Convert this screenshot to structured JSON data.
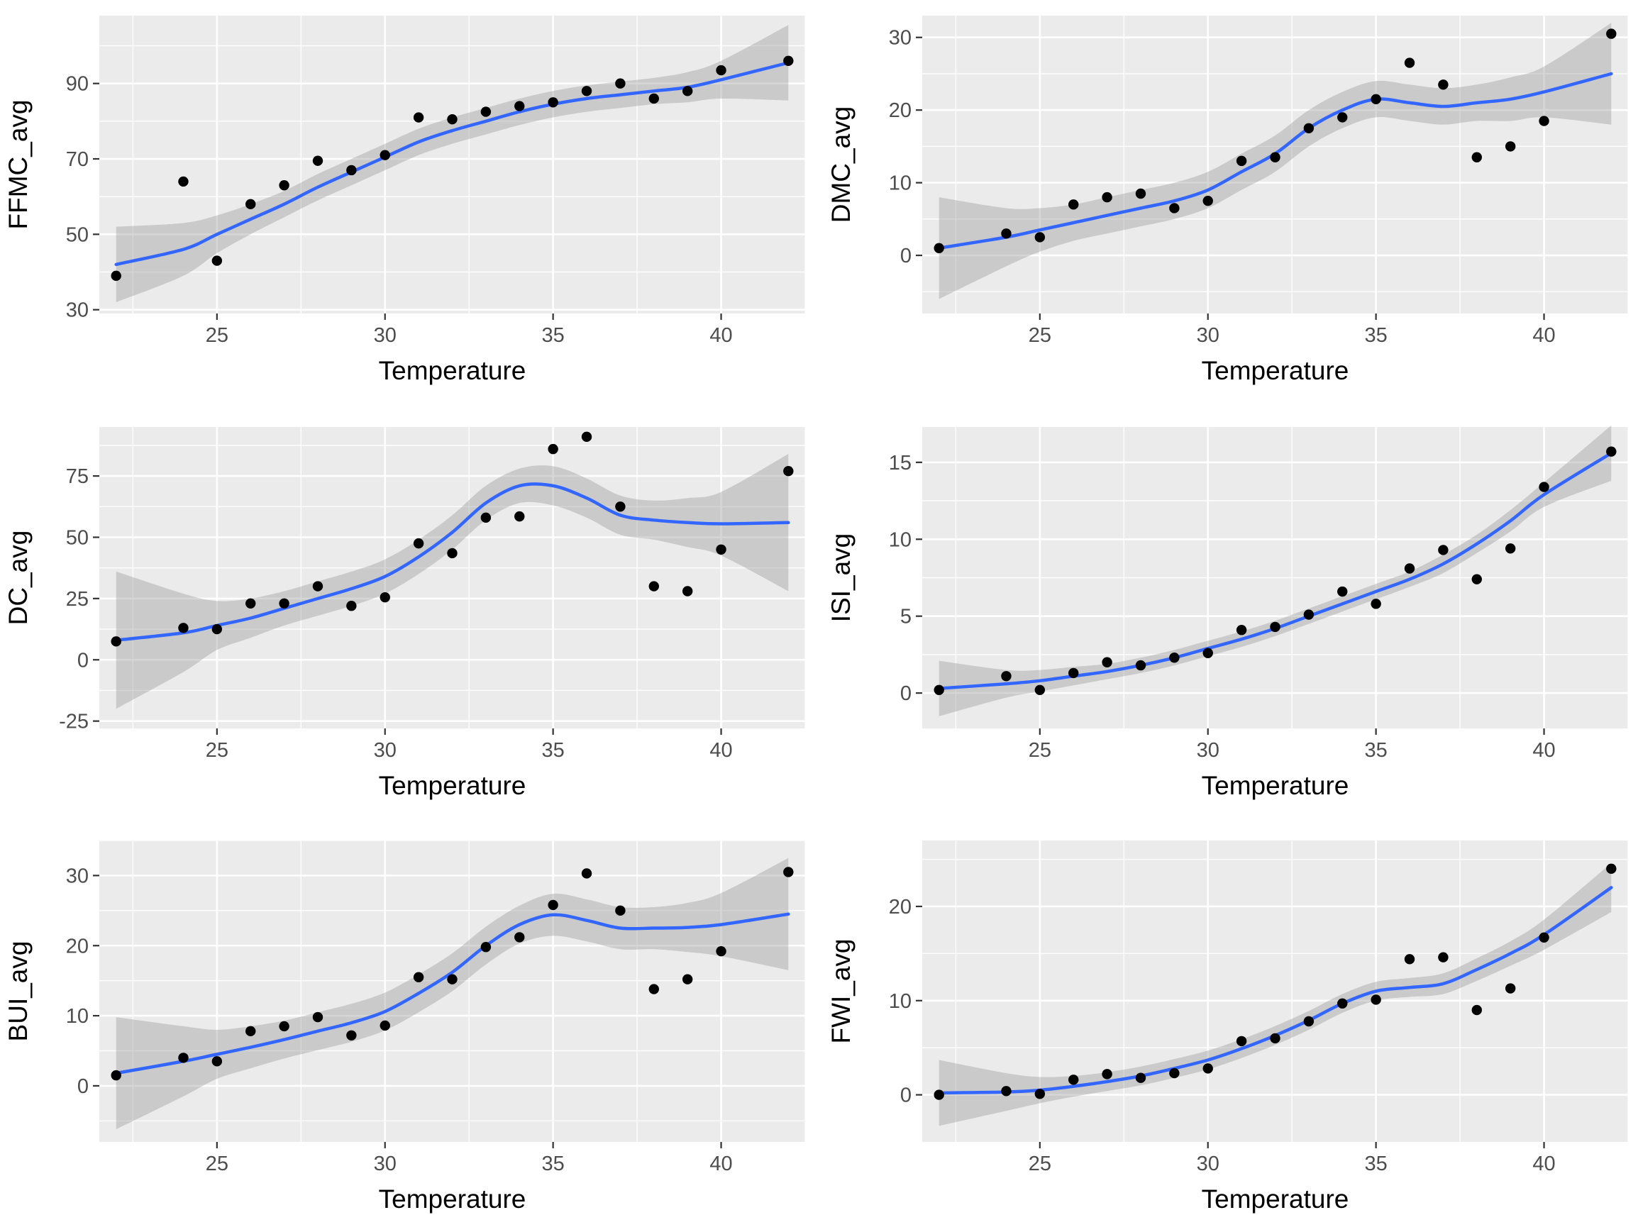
{
  "chart_data": [
    {
      "type": "scatter",
      "smooth": "loess with confidence band",
      "xlabel": "Temperature",
      "ylabel": "FFMC_avg",
      "xlim": [
        21.5,
        42.5
      ],
      "ylim": [
        29,
        108
      ],
      "xticks": [
        25,
        30,
        35,
        40
      ],
      "yticks": [
        30,
        50,
        70,
        90
      ],
      "x": [
        22,
        24,
        25,
        26,
        27,
        28,
        29,
        30,
        31,
        32,
        33,
        34,
        35,
        36,
        37,
        38,
        39,
        40,
        42
      ],
      "y": [
        39,
        64,
        43,
        58,
        63,
        69.5,
        67,
        71,
        81,
        80.5,
        82.5,
        84,
        85,
        88,
        90,
        86,
        88,
        93.5,
        96
      ],
      "fit": [
        42,
        46,
        50,
        54,
        58,
        62.5,
        66.5,
        70.5,
        74.5,
        77.5,
        80,
        82.5,
        84.5,
        86,
        87,
        88,
        89,
        91,
        95.5
      ],
      "band": [
        10,
        7,
        5,
        4,
        3.5,
        3.5,
        3.5,
        3.5,
        3.5,
        3.5,
        3.5,
        3.5,
        3.5,
        3.5,
        3.5,
        3.5,
        4,
        5,
        10
      ]
    },
    {
      "type": "scatter",
      "smooth": "loess with confidence band",
      "xlabel": "Temperature",
      "ylabel": "DMC_avg",
      "xlim": [
        21.5,
        42.5
      ],
      "ylim": [
        -8,
        33
      ],
      "xticks": [
        25,
        30,
        35,
        40
      ],
      "yticks": [
        0,
        10,
        20,
        30
      ],
      "x": [
        22,
        24,
        25,
        26,
        27,
        28,
        29,
        30,
        31,
        32,
        33,
        34,
        35,
        36,
        37,
        38,
        39,
        40,
        42
      ],
      "y": [
        1,
        3,
        2.5,
        7,
        8,
        8.5,
        6.5,
        7.5,
        13,
        13.5,
        17.5,
        19,
        21.5,
        26.5,
        23.5,
        13.5,
        15,
        18.5,
        30.5
      ],
      "fit": [
        1,
        2.5,
        3.5,
        4.5,
        5.5,
        6.5,
        7.5,
        9,
        11.5,
        14,
        17.5,
        20,
        21.5,
        21,
        20.5,
        21,
        21.5,
        22.5,
        25
      ],
      "band": [
        7,
        4,
        3,
        2.5,
        2.5,
        2.5,
        2.5,
        2.5,
        2.5,
        2.5,
        2.5,
        2.5,
        2.5,
        2.5,
        2.5,
        2.5,
        3,
        3.5,
        7
      ]
    },
    {
      "type": "scatter",
      "smooth": "loess with confidence band",
      "xlabel": "Temperature",
      "ylabel": "DC_avg",
      "xlim": [
        21.5,
        42.5
      ],
      "ylim": [
        -28,
        95
      ],
      "xticks": [
        25,
        30,
        35,
        40
      ],
      "yticks": [
        -25,
        0,
        25,
        50,
        75
      ],
      "x": [
        22,
        24,
        25,
        26,
        27,
        28,
        29,
        30,
        31,
        32,
        33,
        34,
        35,
        36,
        37,
        38,
        39,
        40,
        42
      ],
      "y": [
        7.5,
        13,
        12.5,
        23,
        23,
        30,
        22,
        25.5,
        47.5,
        43.5,
        58,
        58.5,
        86,
        91,
        62.5,
        30,
        28,
        45,
        77
      ],
      "fit": [
        8,
        11,
        14,
        17,
        21,
        25,
        29,
        34,
        42,
        52,
        64,
        71,
        71,
        66,
        59,
        57,
        56,
        55.5,
        56
      ],
      "band": [
        28,
        16,
        10,
        8,
        7,
        7,
        7,
        7,
        7,
        7,
        7,
        7,
        8,
        8,
        8,
        8,
        10,
        13,
        28
      ]
    },
    {
      "type": "scatter",
      "smooth": "loess with confidence band",
      "xlabel": "Temperature",
      "ylabel": "ISI_avg",
      "xlim": [
        21.5,
        42.5
      ],
      "ylim": [
        -2.3,
        17.3
      ],
      "xticks": [
        25,
        30,
        35,
        40
      ],
      "yticks": [
        0,
        5,
        10,
        15
      ],
      "x": [
        22,
        24,
        25,
        26,
        27,
        28,
        29,
        30,
        31,
        32,
        33,
        34,
        35,
        36,
        37,
        38,
        39,
        40,
        42
      ],
      "y": [
        0.2,
        1.1,
        0.2,
        1.3,
        2,
        1.8,
        2.3,
        2.6,
        4.1,
        4.3,
        5.1,
        6.6,
        5.8,
        8.1,
        9.3,
        7.4,
        9.4,
        13.4,
        15.7
      ],
      "fit": [
        0.3,
        0.6,
        0.8,
        1.1,
        1.4,
        1.8,
        2.3,
        2.9,
        3.5,
        4.2,
        5,
        5.8,
        6.6,
        7.4,
        8.4,
        9.7,
        11.2,
        12.9,
        15.6
      ],
      "band": [
        1.8,
        0.9,
        0.7,
        0.6,
        0.5,
        0.5,
        0.5,
        0.5,
        0.5,
        0.5,
        0.5,
        0.5,
        0.5,
        0.5,
        0.6,
        0.6,
        0.7,
        0.8,
        1.8
      ]
    },
    {
      "type": "scatter",
      "smooth": "loess with confidence band",
      "xlabel": "Temperature",
      "ylabel": "BUI_avg",
      "xlim": [
        21.5,
        42.5
      ],
      "ylim": [
        -8,
        35
      ],
      "xticks": [
        25,
        30,
        35,
        40
      ],
      "yticks": [
        0,
        10,
        20,
        30
      ],
      "x": [
        22,
        24,
        25,
        26,
        27,
        28,
        29,
        30,
        31,
        32,
        33,
        34,
        35,
        36,
        37,
        38,
        39,
        40,
        42
      ],
      "y": [
        1.5,
        4,
        3.5,
        7.8,
        8.5,
        9.8,
        7.2,
        8.6,
        15.5,
        15.2,
        19.8,
        21.2,
        25.8,
        30.3,
        25,
        13.8,
        15.2,
        19.2,
        30.5
      ],
      "fit": [
        1.8,
        3.5,
        4.5,
        5.5,
        6.6,
        7.8,
        9,
        10.6,
        13.2,
        16.2,
        20,
        23,
        24.4,
        23.6,
        22.5,
        22.5,
        22.6,
        23,
        24.5
      ],
      "band": [
        8,
        5,
        3.5,
        3,
        2.7,
        2.7,
        2.7,
        2.7,
        2.7,
        2.7,
        2.7,
        2.7,
        3,
        3,
        3,
        3,
        3.5,
        4.5,
        8
      ]
    },
    {
      "type": "scatter",
      "smooth": "loess with confidence band",
      "xlabel": "Temperature",
      "ylabel": "FWI_avg",
      "xlim": [
        21.5,
        42.5
      ],
      "ylim": [
        -5,
        27
      ],
      "xticks": [
        25,
        30,
        35,
        40
      ],
      "yticks": [
        0,
        10,
        20
      ],
      "x": [
        22,
        24,
        25,
        26,
        27,
        28,
        29,
        30,
        31,
        32,
        33,
        34,
        35,
        36,
        37,
        38,
        39,
        40,
        42
      ],
      "y": [
        0,
        0.4,
        0.1,
        1.6,
        2.2,
        1.8,
        2.3,
        2.8,
        5.7,
        6,
        7.8,
        9.7,
        10.1,
        14.4,
        14.6,
        9,
        11.3,
        16.7,
        24
      ],
      "fit": [
        0.2,
        0.3,
        0.5,
        0.9,
        1.4,
        2,
        2.8,
        3.7,
        4.9,
        6.3,
        7.9,
        9.7,
        11,
        11.4,
        11.8,
        13.3,
        15,
        17,
        22
      ],
      "band": [
        3.5,
        2,
        1.4,
        1.1,
        1,
        1,
        1,
        1,
        1,
        1,
        1,
        1,
        1,
        1,
        1.1,
        1.2,
        1.3,
        1.6,
        2.6
      ]
    }
  ]
}
